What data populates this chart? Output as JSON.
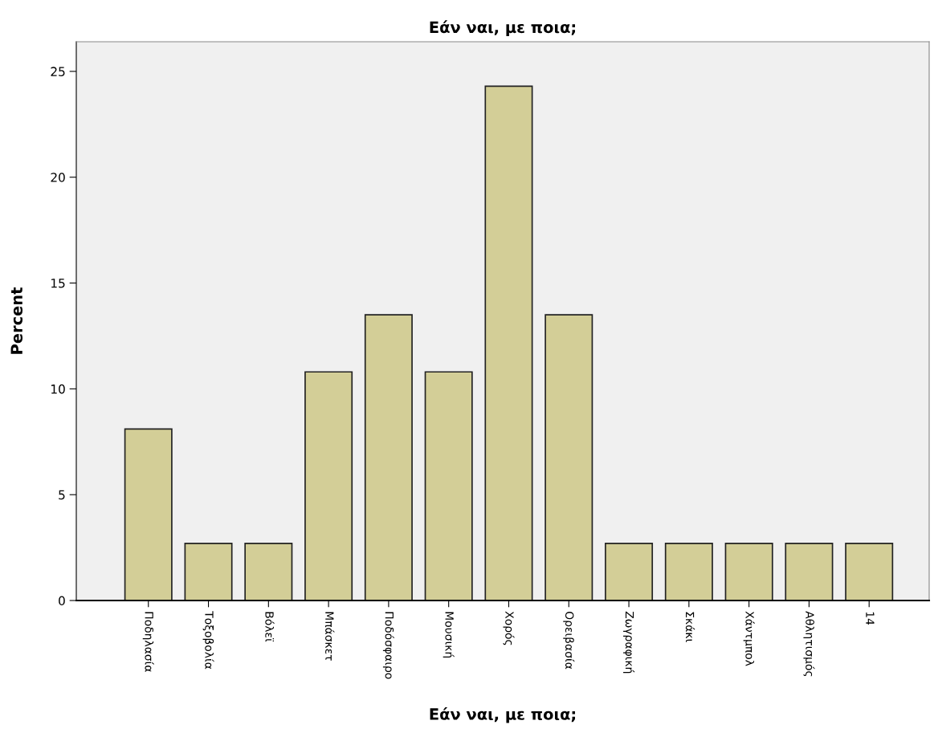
{
  "chart_data": {
    "type": "bar",
    "title": "Εάν ναι, με ποια;",
    "xlabel": "Εάν ναι, με ποια;",
    "ylabel": "Percent",
    "categories": [
      "Ποδηλασία",
      "Τοξοβολία",
      "Βόλεϊ",
      "Μπάσκετ",
      "Ποδόσφαιρο",
      "Μουσική",
      "Χορός",
      "Ορειβασία",
      "Ζωγραφική",
      "Σκάκι",
      "Χάντμπολ",
      "Αθλητισμός",
      "14"
    ],
    "values": [
      8.1,
      2.7,
      2.7,
      10.8,
      13.5,
      10.8,
      24.3,
      13.5,
      2.7,
      2.7,
      2.7,
      2.7,
      2.7
    ],
    "color": "#d3ce97",
    "ylim": [
      0,
      26.4
    ],
    "yticks": [
      0,
      5,
      10,
      15,
      20,
      25
    ],
    "grid": false,
    "legend": false
  }
}
